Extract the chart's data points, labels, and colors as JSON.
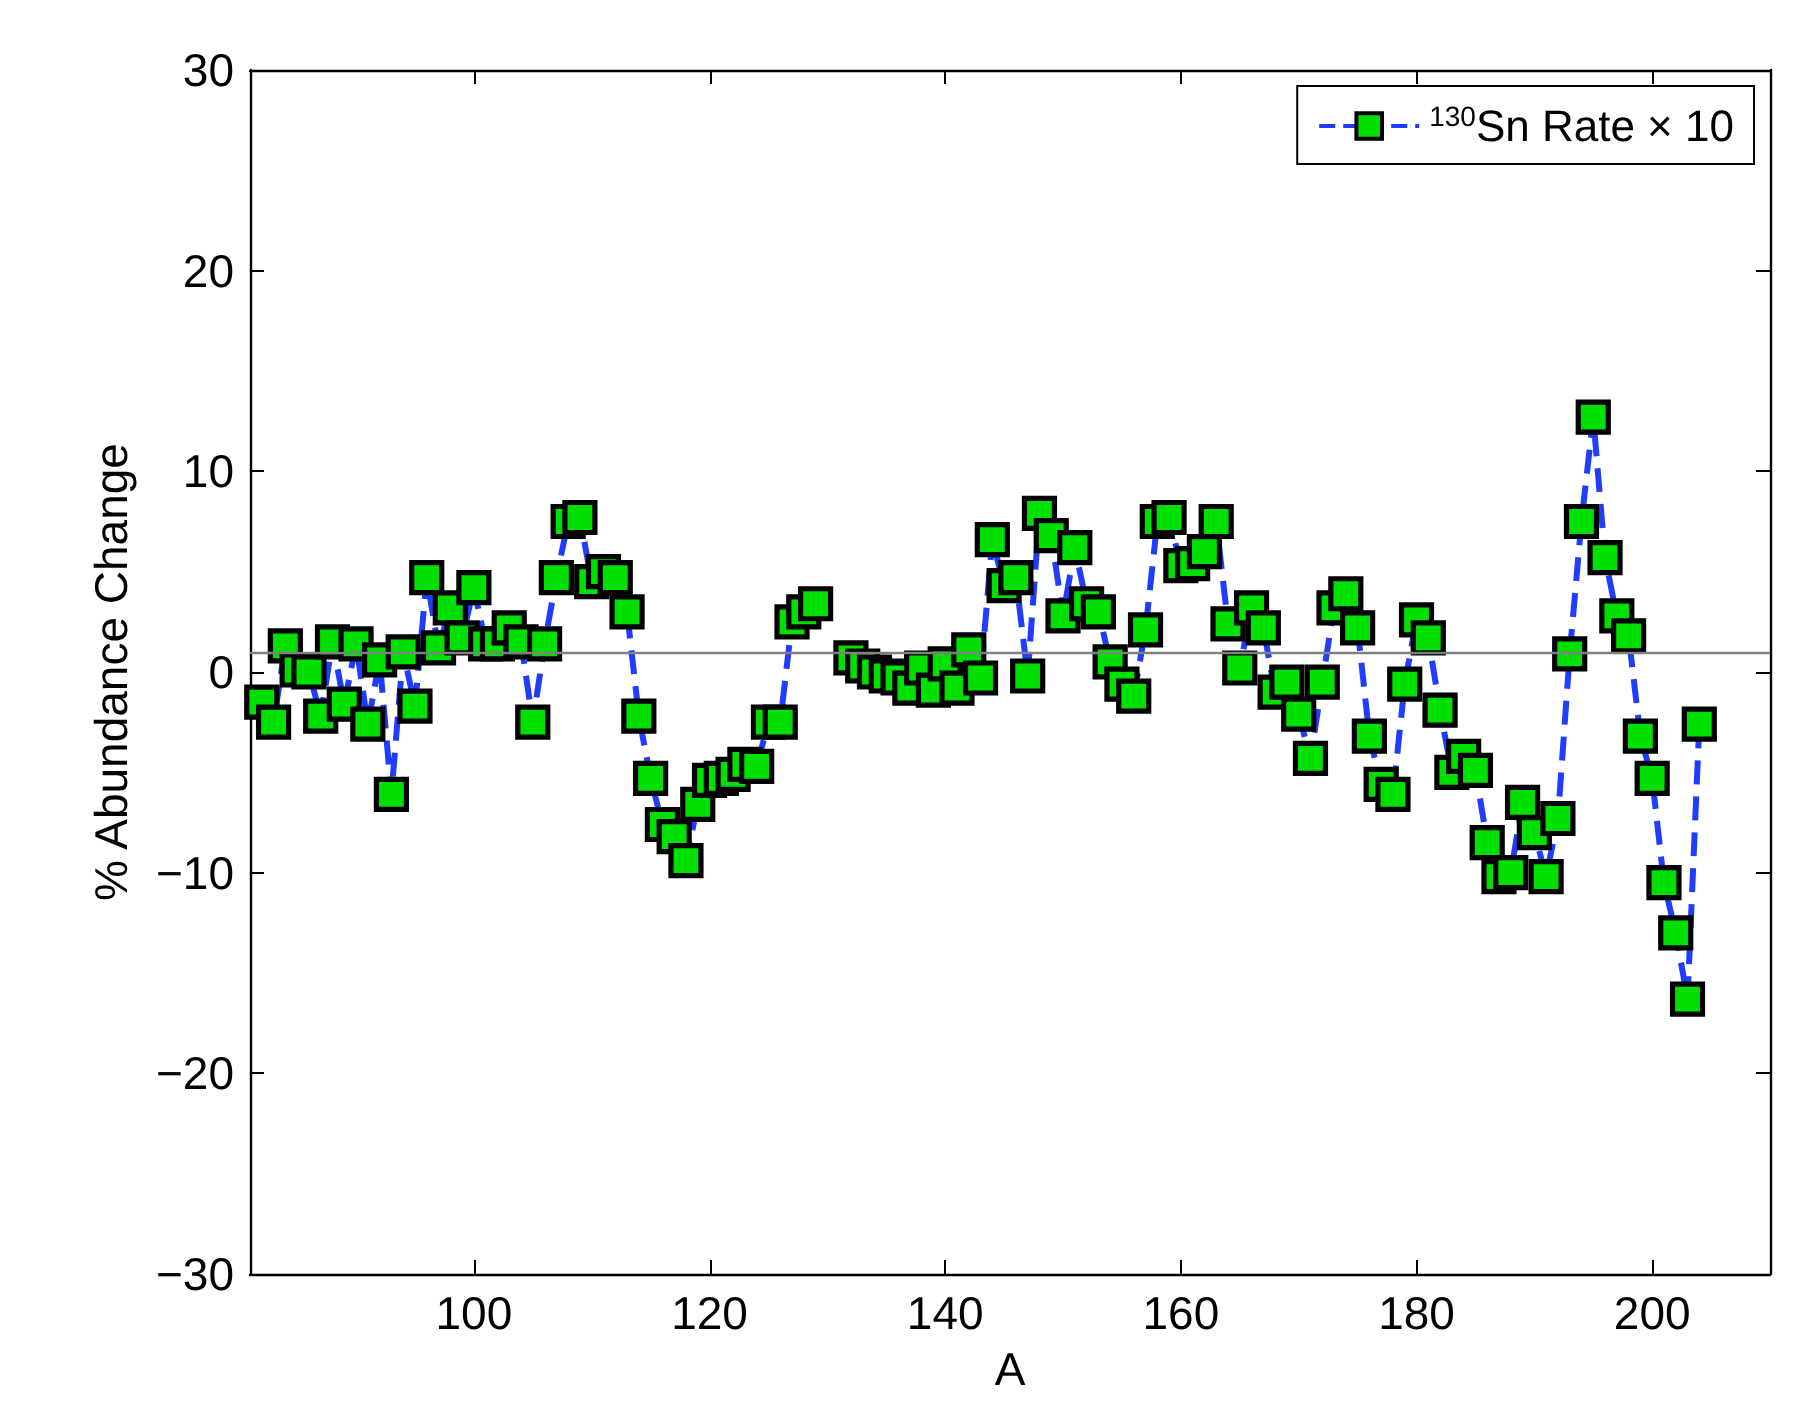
{
  "chart_data": {
    "type": "line",
    "xlabel": "A",
    "ylabel": "% Abundance Change",
    "x": [
      82,
      83,
      84,
      85,
      86,
      87,
      88,
      89,
      90,
      91,
      92,
      93,
      94,
      95,
      96,
      97,
      98,
      99,
      100,
      101,
      102,
      103,
      104,
      105,
      106,
      107,
      108,
      109,
      110,
      111,
      112,
      113,
      114,
      115,
      116,
      117,
      118,
      119,
      120,
      121,
      122,
      123,
      124,
      125,
      126,
      127,
      128,
      129,
      130,
      131,
      132,
      133,
      134,
      135,
      136,
      137,
      138,
      139,
      140,
      141,
      142,
      143,
      144,
      145,
      146,
      147,
      148,
      149,
      150,
      151,
      152,
      153,
      154,
      155,
      156,
      157,
      158,
      159,
      160,
      161,
      162,
      163,
      164,
      165,
      166,
      167,
      168,
      169,
      170,
      171,
      172,
      173,
      174,
      175,
      176,
      177,
      178,
      179,
      180,
      181,
      182,
      183,
      184,
      185,
      186,
      187,
      188,
      189,
      190,
      191,
      192,
      193,
      194,
      195,
      196,
      197,
      198,
      199,
      200,
      201,
      202,
      203,
      204
    ],
    "series": [
      {
        "name": "$^{130}$Sn Rate × 10",
        "color": "#00e000",
        "values": [
          -1.5,
          -2.5,
          1.3,
          0.1,
          0.0,
          -2.2,
          1.5,
          -1.6,
          1.4,
          -2.6,
          0.6,
          -6.1,
          1.0,
          -1.7,
          4.7,
          1.2,
          3.2,
          1.7,
          4.2,
          1.4,
          1.4,
          2.2,
          1.5,
          -2.5,
          1.4,
          4.7,
          7.5,
          7.7,
          4.5,
          5.0,
          4.7,
          3.0,
          -2.2,
          -5.3,
          -7.6,
          -8.2,
          -9.4,
          -6.6,
          -5.4,
          -5.3,
          -5.1,
          -4.6,
          -4.7,
          -2.5,
          -2.5,
          2.5,
          3.0,
          3.4,
          null,
          null,
          0.7,
          0.3,
          0.0,
          -0.2,
          -0.3,
          -0.8,
          0.2,
          -0.9,
          0.4,
          -0.8,
          1.1,
          -0.3,
          6.6,
          4.3,
          4.7,
          -0.2,
          7.9,
          6.8,
          2.8,
          6.2,
          3.4,
          3.0,
          0.5,
          -0.6,
          -1.2,
          2.1,
          7.5,
          7.7,
          5.3,
          5.4,
          6.0,
          7.5,
          2.4,
          0.2,
          3.2,
          2.2,
          -1.0,
          -0.5,
          -2.1,
          -4.3,
          -0.5,
          3.2,
          3.9,
          2.2,
          -3.2,
          -5.6,
          -6.1,
          -0.6,
          2.6,
          1.7,
          -1.9,
          -5.0,
          -4.2,
          -4.9,
          -8.5,
          -10.2,
          -10.0,
          -6.5,
          -8.0,
          -10.2,
          -7.3,
          0.9,
          7.5,
          12.7,
          5.7,
          2.8,
          1.8,
          -3.2,
          -5.3,
          -10.5,
          -13.0,
          -16.3,
          -2.6
        ]
      }
    ],
    "xlim": [
      81,
      210
    ],
    "ylim": [
      -30,
      30
    ],
    "xticks": [
      100,
      120,
      140,
      160,
      180,
      200
    ],
    "yticks": [
      -30,
      -20,
      -10,
      0,
      10,
      20,
      30
    ],
    "ref_lines": [
      {
        "axis": "y",
        "value": 1,
        "color": "#808080"
      }
    ],
    "legend": "top right",
    "marker": "square",
    "line_style": "dashed"
  }
}
